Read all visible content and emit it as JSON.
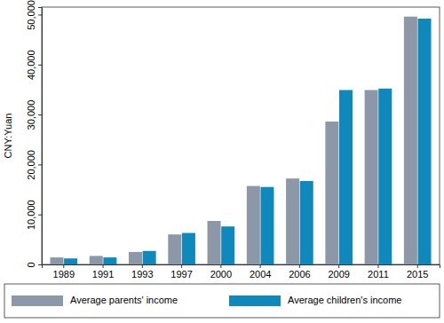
{
  "chart_data": {
    "type": "bar",
    "y_label": "CNY:Yuan",
    "categories": [
      "1989",
      "1991",
      "1993",
      "1997",
      "2000",
      "2004",
      "2006",
      "2009",
      "2011",
      "2015"
    ],
    "series": [
      {
        "name": "Average parents' income",
        "color": "#8c97a7",
        "values": [
          1400,
          1700,
          2500,
          6000,
          8700,
          15700,
          17200,
          28600,
          34900,
          49600
        ]
      },
      {
        "name": "Average children's income",
        "color": "#0f88bb",
        "values": [
          1200,
          1400,
          2700,
          6300,
          7600,
          15500,
          16700,
          34900,
          35200,
          49200
        ]
      }
    ],
    "ylim": [
      0,
      51500
    ],
    "yticks": [
      0,
      {
        "value": 10000,
        "label": "10,000"
      },
      {
        "value": 20000,
        "label": "20,000"
      },
      {
        "value": 30000,
        "label": "30,000"
      },
      {
        "value": 40000,
        "label": "40,000"
      },
      {
        "value": 50000,
        "label": "50,000"
      }
    ],
    "grid": false,
    "legend": "bottom"
  }
}
